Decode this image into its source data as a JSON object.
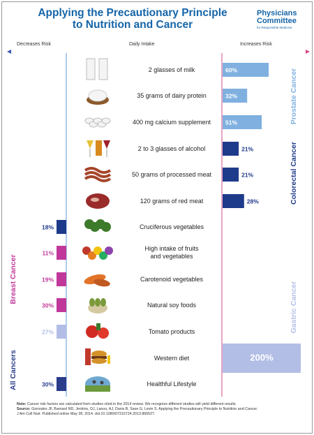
{
  "header": {
    "title_line1": "Applying the Precautionary Principle",
    "title_line2": "to Nutrition and Cancer",
    "org_line1": "Physicians",
    "org_line2": "Committee",
    "org_tagline": "for Responsible Medicine",
    "decreases_label": "Decreases Risk",
    "intake_label": "Daily Intake",
    "increases_label": "Increases Risk"
  },
  "colors": {
    "prostate": "#7fb0e0",
    "colorectal": "#1e3a8a",
    "gastric": "#b3bee6",
    "breast": "#c0399a",
    "all": "#293d8c",
    "title": "#1565a8"
  },
  "chart_data": {
    "type": "bar",
    "rows": [
      {
        "label": "2 glasses of milk",
        "direction": "increase",
        "value": 60,
        "value_label": "60%",
        "group": "prostate",
        "icon": "milk-glasses-icon"
      },
      {
        "label": "35 grams of dairy protein",
        "direction": "increase",
        "value": 32,
        "value_label": "32%",
        "group": "prostate",
        "icon": "dairy-protein-icon"
      },
      {
        "label": "400 mg calcium supplement",
        "direction": "increase",
        "value": 51,
        "value_label": "51%",
        "group": "prostate",
        "icon": "calcium-pills-icon"
      },
      {
        "label": "2 to 3 glasses of alcohol",
        "direction": "increase",
        "value": 21,
        "value_label": "21%",
        "group": "colorectal",
        "icon": "alcohol-glasses-icon"
      },
      {
        "label": "50 grams of processed meat",
        "direction": "increase",
        "value": 21,
        "value_label": "21%",
        "group": "colorectal",
        "icon": "processed-meat-icon"
      },
      {
        "label": "120 grams of red meat",
        "direction": "increase",
        "value": 28,
        "value_label": "28%",
        "group": "colorectal",
        "icon": "red-meat-icon"
      },
      {
        "label": "Cruciferous vegetables",
        "direction": "decrease",
        "value": 18,
        "value_label": "18%",
        "group": "colorectal",
        "icon": "cruciferous-vegetables-icon"
      },
      {
        "label": "High intake of fruits",
        "label2": "and vegetables",
        "direction": "decrease",
        "value": 11,
        "value_label": "11%",
        "group": "breast",
        "icon": "fruits-vegetables-icon"
      },
      {
        "label": "Carotenoid vegetables",
        "direction": "decrease",
        "value": 19,
        "value_label": "19%",
        "group": "breast",
        "icon": "carotenoid-vegetables-icon"
      },
      {
        "label": "Natural soy foods",
        "direction": "decrease",
        "value": 30,
        "value_label": "30%",
        "group": "breast",
        "icon": "soy-foods-icon"
      },
      {
        "label": "Tomato products",
        "direction": "decrease",
        "value": 27,
        "value_label": "27%",
        "group": "gastric",
        "icon": "tomato-products-icon"
      },
      {
        "label": "Western diet",
        "direction": "increase",
        "value": 200,
        "value_label": "200%",
        "group": "gastric",
        "icon": "western-diet-icon"
      },
      {
        "label": "Healthful Lifestyle",
        "direction": "decrease",
        "value": 30,
        "value_label": "30%",
        "group": "all",
        "icon": "healthful-lifestyle-icon"
      }
    ],
    "group_labels": {
      "prostate": "Prostate Cancer",
      "colorectal": "Colorectal Cancer",
      "gastric": "Gastric Cancer",
      "breast": "Breast Cancer",
      "all": "All Cancers"
    }
  },
  "note": {
    "note_label": "Note:",
    "note_text": "Cancer risk factors are calculated from studies cited in the 2014 review. We recognize different studies will yield different results.",
    "source_label": "Source:",
    "source_text": "Gonzales JF, Barnard ND, Jenkins, DJ, Lanou, AJ, Davis B, Saxe G, Levin S. Applying the Precautionary Principle to Nutrition and Cancer.",
    "source_text2": "J Am Coll Nutr. Published online May 28, 2014. doi:10.1080/07315724.2013.866527."
  }
}
